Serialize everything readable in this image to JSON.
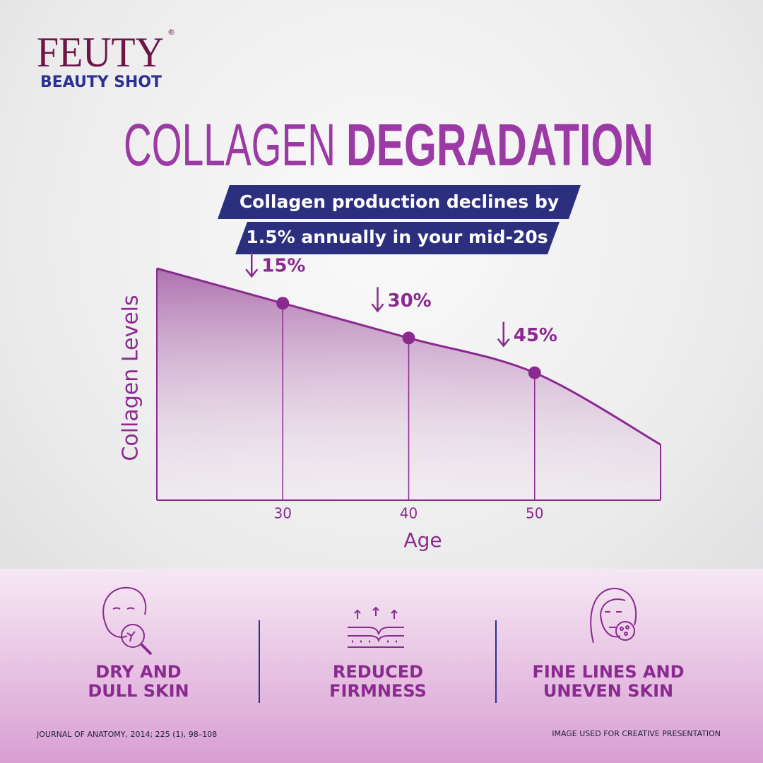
{
  "brand": {
    "name": "FEUTY",
    "mark": "®",
    "tagline": "BEAUTY SHOT"
  },
  "headline": {
    "light": "COLLAGEN",
    "bold": "DEGRADATION",
    "banner": [
      "Collagen production declines by",
      "1.5% annually in your mid-20s"
    ]
  },
  "chart_data": {
    "type": "area",
    "x_label": "Age",
    "y_label": "Collagen Levels",
    "x": [
      20,
      30,
      40,
      50,
      60
    ],
    "values": [
      0,
      15,
      30,
      45,
      76
    ],
    "value_labels": [
      null,
      "15%",
      "30%",
      "45%",
      null
    ],
    "xlim": [
      20,
      60
    ],
    "xticks": [
      30,
      40,
      50
    ],
    "ylim": [
      0,
      100
    ],
    "inverted": true,
    "color": "#8a2a90"
  },
  "features": [
    {
      "lines": [
        "DRY AND",
        "DULL SKIN"
      ]
    },
    {
      "lines": [
        "REDUCED",
        "FIRMNESS"
      ]
    },
    {
      "lines": [
        "FINE LINES AND",
        "UNEVEN SKIN"
      ]
    }
  ],
  "footer": {
    "source": "JOURNAL OF ANATOMY, 2014; 225 (1), 98–108",
    "note": "IMAGE USED FOR CREATIVE PRESENTATION"
  }
}
